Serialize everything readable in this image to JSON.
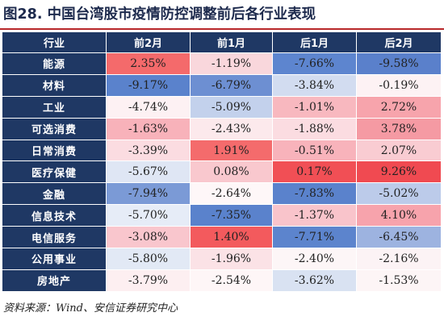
{
  "title": "图28. 中国台湾股市疫情防控调整前后各行业表现",
  "source": "资料来源：Wind、安信证券研究中心",
  "chart_data": {
    "type": "table",
    "columns": [
      "行业",
      "前2月",
      "前1月",
      "后1月",
      "后2月"
    ],
    "rows": [
      {
        "industry": "能源",
        "values": [
          "2.35%",
          "-1.19%",
          "-7.66%",
          "-9.58%"
        ],
        "colors": [
          "#f46a6b",
          "#f9d7dc",
          "#5d85cf",
          "#5a80cb"
        ]
      },
      {
        "industry": "材料",
        "values": [
          "-9.17%",
          "-6.79%",
          "-3.84%",
          "-0.19%"
        ],
        "colors": [
          "#5a82cc",
          "#6d8fd2",
          "#d2dcf0",
          "#fdf2f4"
        ]
      },
      {
        "industry": "工业",
        "values": [
          "-4.74%",
          "-5.09%",
          "-1.01%",
          "2.72%"
        ],
        "colors": [
          "#fdf1f3",
          "#c3d1ec",
          "#f8b8bf",
          "#f7a4ac"
        ]
      },
      {
        "industry": "可选消费",
        "values": [
          "-1.63%",
          "-2.43%",
          "-1.88%",
          "3.78%"
        ],
        "colors": [
          "#f8b2ba",
          "#fce9ec",
          "#fbdce1",
          "#f59aa3"
        ]
      },
      {
        "industry": "日常消费",
        "values": [
          "-3.39%",
          "1.91%",
          "-0.51%",
          "2.07%"
        ],
        "colors": [
          "#fbdce1",
          "#f46b6c",
          "#f8b3bb",
          "#f9ccd2"
        ]
      },
      {
        "industry": "医疗保健",
        "values": [
          "-5.67%",
          "0.08%",
          "0.17%",
          "9.26%"
        ],
        "colors": [
          "#dfe6f4",
          "#f9c8ce",
          "#f14f55",
          "#f04a51"
        ]
      },
      {
        "industry": "金融",
        "values": [
          "-7.94%",
          "-2.64%",
          "-7.83%",
          "-5.02%"
        ],
        "colors": [
          "#7b9ad6",
          "#fef7f8",
          "#5a82cc",
          "#bccbea"
        ]
      },
      {
        "industry": "信息技术",
        "values": [
          "-5.70%",
          "-7.35%",
          "-1.37%",
          "4.10%"
        ],
        "colors": [
          "#e6ecf7",
          "#5a82cc",
          "#f9c4cb",
          "#f7a3ac"
        ]
      },
      {
        "industry": "电信服务",
        "values": [
          "-3.08%",
          "1.40%",
          "-7.71%",
          "-6.45%"
        ],
        "colors": [
          "#f9c6cd",
          "#f35a5d",
          "#5c84cd",
          "#9db3e0"
        ]
      },
      {
        "industry": "公用事业",
        "values": [
          "-5.80%",
          "-1.96%",
          "-2.40%",
          "-2.16%"
        ],
        "colors": [
          "#e2e9f5",
          "#fbe2e6",
          "#fdf6f7",
          "#fcf3f5"
        ]
      },
      {
        "industry": "房地产",
        "values": [
          "-3.79%",
          "-2.54%",
          "-3.62%",
          "-1.53%"
        ],
        "colors": [
          "#fdeff1",
          "#fef6f7",
          "#d9e2f2",
          "#fdf5f6"
        ]
      }
    ]
  }
}
